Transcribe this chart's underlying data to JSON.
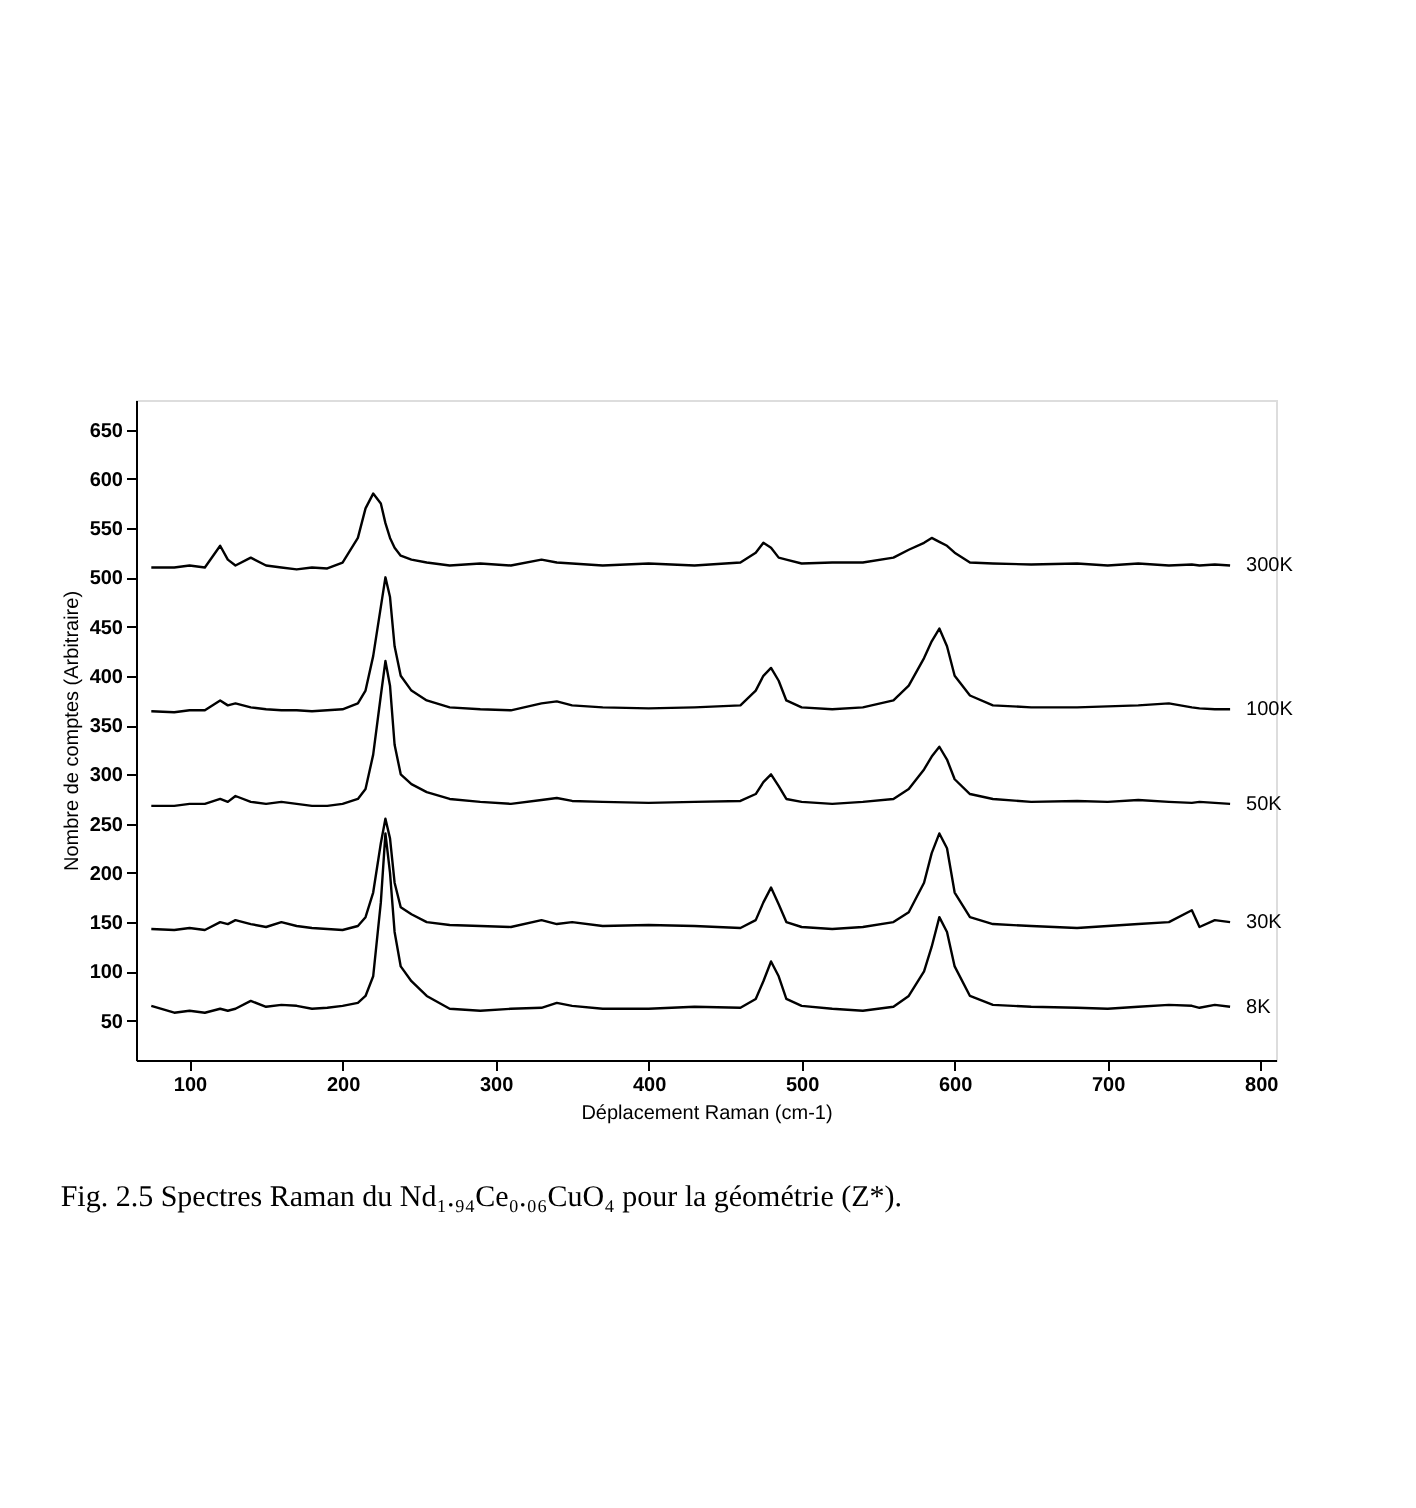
{
  "chart_data": {
    "type": "line",
    "xlabel": "Déplacement Raman (cm-1)",
    "ylabel": "Nombre de comptes (Arbitraire)",
    "annotations": [
      "Fig. 2.5      Spectres Raman du Nd₁.₉₄Ce₀.₀₆CuO₄ pour la géométrie (Z*)."
    ],
    "x": [
      75,
      90,
      100,
      110,
      120,
      125,
      130,
      140,
      150,
      160,
      170,
      180,
      190,
      200,
      210,
      215,
      220,
      225,
      228,
      231,
      234,
      238,
      245,
      255,
      270,
      290,
      310,
      330,
      340,
      350,
      370,
      400,
      430,
      460,
      470,
      475,
      480,
      485,
      490,
      500,
      520,
      540,
      560,
      570,
      580,
      585,
      590,
      595,
      600,
      610,
      625,
      650,
      680,
      700,
      720,
      740,
      755,
      760,
      770,
      780
    ],
    "series": [
      {
        "name": "8K",
        "color": "#000000",
        "values": [
          65,
          58,
          60,
          58,
          62,
          60,
          62,
          70,
          64,
          66,
          65,
          62,
          63,
          65,
          68,
          75,
          95,
          170,
          240,
          200,
          140,
          105,
          90,
          75,
          62,
          60,
          62,
          63,
          68,
          65,
          62,
          62,
          64,
          63,
          72,
          90,
          110,
          95,
          72,
          65,
          62,
          60,
          64,
          75,
          100,
          125,
          155,
          140,
          105,
          75,
          66,
          64,
          63,
          62,
          64,
          66,
          65,
          63,
          66,
          64
        ]
      },
      {
        "name": "30K",
        "color": "#000000",
        "values": [
          143,
          142,
          144,
          142,
          150,
          148,
          152,
          148,
          145,
          150,
          146,
          144,
          143,
          142,
          146,
          155,
          180,
          230,
          255,
          235,
          190,
          165,
          158,
          150,
          147,
          146,
          145,
          152,
          148,
          150,
          146,
          147,
          146,
          144,
          152,
          170,
          185,
          168,
          150,
          145,
          143,
          145,
          150,
          160,
          190,
          220,
          240,
          225,
          180,
          155,
          148,
          146,
          144,
          146,
          148,
          150,
          162,
          145,
          152,
          150
        ]
      },
      {
        "name": "50K",
        "color": "#000000",
        "values": [
          268,
          268,
          270,
          270,
          275,
          272,
          278,
          272,
          270,
          272,
          270,
          268,
          268,
          270,
          275,
          285,
          320,
          380,
          415,
          390,
          330,
          300,
          290,
          282,
          275,
          272,
          270,
          274,
          276,
          273,
          272,
          271,
          272,
          273,
          280,
          292,
          300,
          288,
          275,
          272,
          270,
          272,
          275,
          285,
          305,
          318,
          328,
          315,
          295,
          280,
          275,
          272,
          273,
          272,
          274,
          272,
          271,
          272,
          271,
          270
        ]
      },
      {
        "name": "100K",
        "color": "#000000",
        "values": [
          364,
          363,
          365,
          365,
          375,
          370,
          372,
          368,
          366,
          365,
          365,
          364,
          365,
          366,
          372,
          385,
          420,
          470,
          500,
          480,
          430,
          400,
          385,
          375,
          368,
          366,
          365,
          372,
          374,
          370,
          368,
          367,
          368,
          370,
          385,
          400,
          408,
          395,
          375,
          368,
          366,
          368,
          375,
          390,
          418,
          435,
          448,
          430,
          400,
          380,
          370,
          368,
          368,
          369,
          370,
          372,
          368,
          367,
          366,
          366
        ]
      },
      {
        "name": "300K",
        "color": "#000000",
        "values": [
          510,
          510,
          512,
          510,
          532,
          518,
          512,
          520,
          512,
          510,
          508,
          510,
          509,
          515,
          540,
          570,
          585,
          575,
          555,
          540,
          530,
          522,
          518,
          515,
          512,
          514,
          512,
          518,
          515,
          514,
          512,
          514,
          512,
          515,
          525,
          535,
          530,
          520,
          518,
          514,
          515,
          515,
          520,
          528,
          535,
          540,
          536,
          532,
          525,
          515,
          514,
          513,
          514,
          512,
          514,
          512,
          513,
          512,
          513,
          512
        ]
      }
    ],
    "xlim": [
      65,
      810
    ],
    "xticks": [
      100,
      200,
      300,
      400,
      500,
      600,
      700,
      800
    ],
    "ylim": [
      10,
      680
    ],
    "yticks": [
      50,
      100,
      150,
      200,
      250,
      300,
      350,
      400,
      450,
      500,
      550,
      600,
      650
    ],
    "grid": false,
    "legend": false,
    "marker": "none",
    "line_style": "solid"
  }
}
